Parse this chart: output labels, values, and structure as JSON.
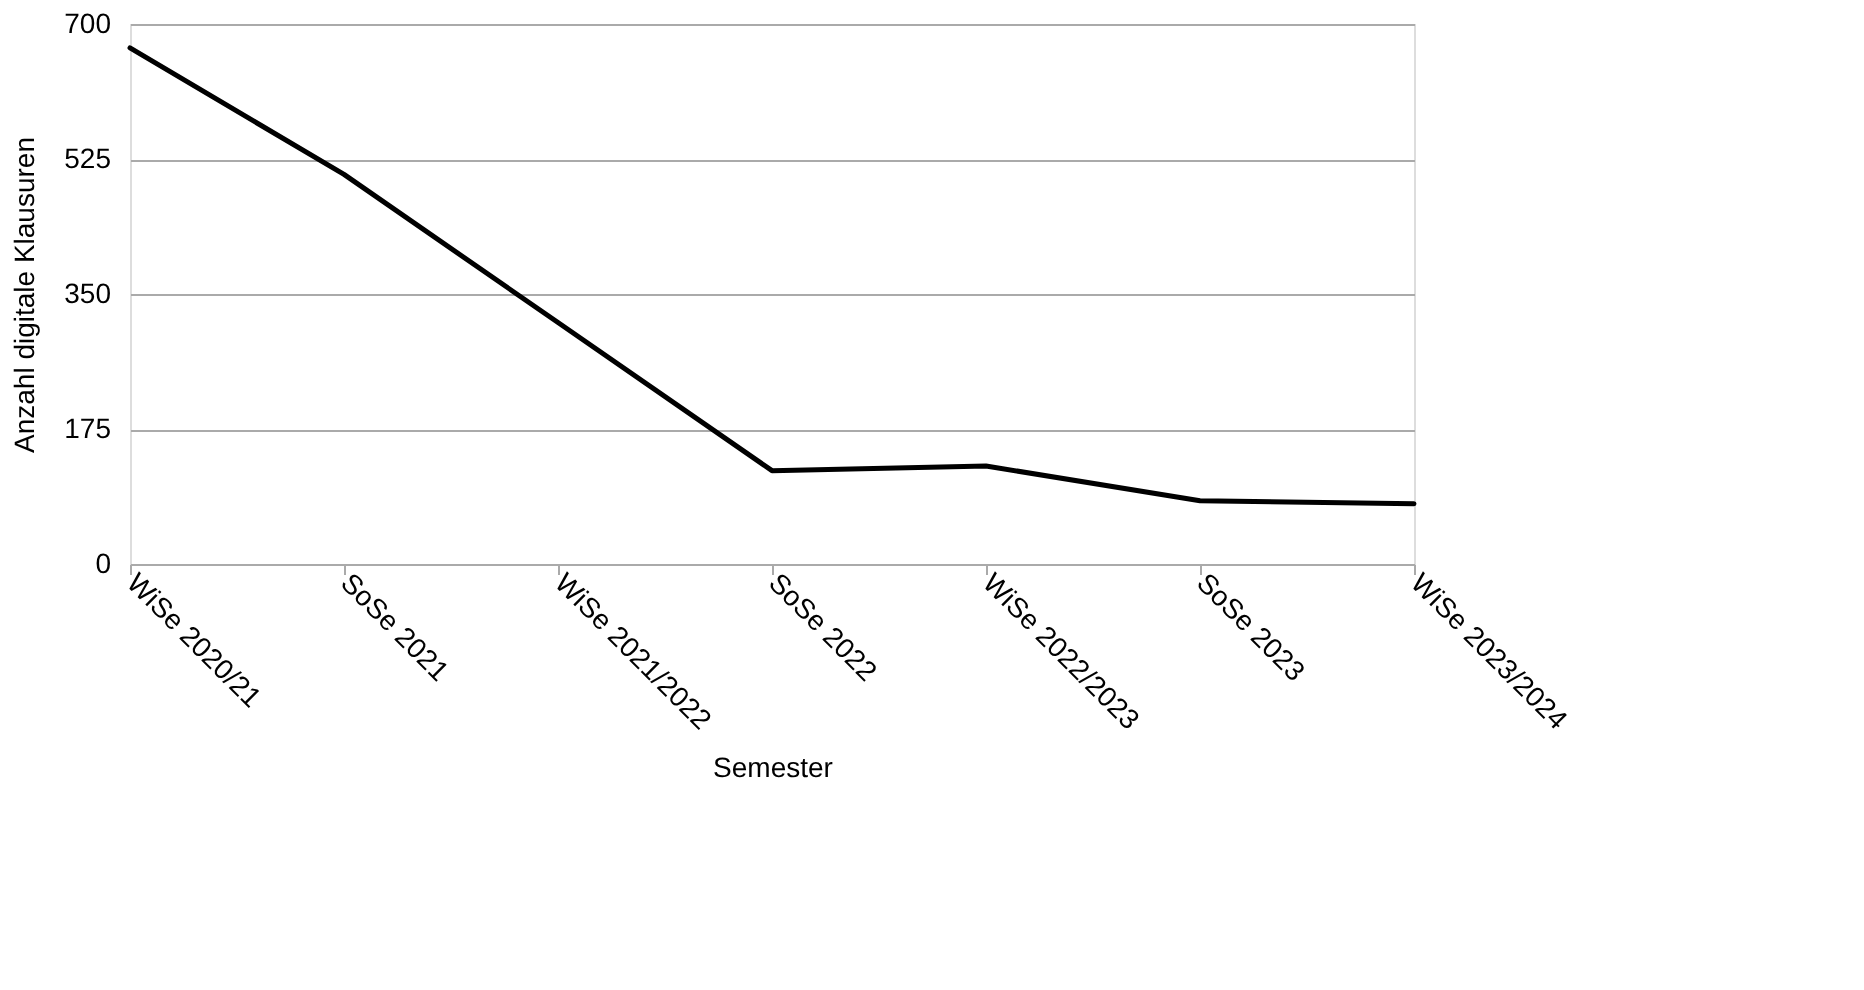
{
  "chart_data": {
    "type": "line",
    "xlabel": "Semester",
    "ylabel": "Anzahl digitale Klausuren",
    "categories": [
      "WiSe 2020/21",
      "SoSe 2021",
      "WiSe 2021/2022",
      "SoSe 2022",
      "WiSe 2022/2023",
      "SoSe 2023",
      "WiSe 2023/2024"
    ],
    "series": [
      {
        "color": "#000000",
        "values": [
          669,
          505,
          313,
          121,
          127,
          82,
          78
        ]
      }
    ],
    "ylim": [
      0,
      700
    ],
    "yticks": [
      0,
      175,
      350,
      525,
      700
    ],
    "grid": "y",
    "marker": "none",
    "line_style": "solid"
  }
}
